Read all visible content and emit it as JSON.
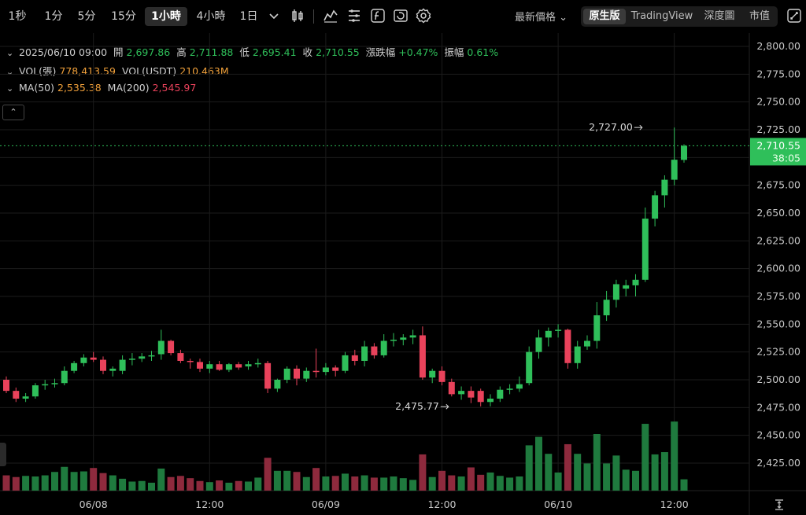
{
  "toolbar": {
    "timeframes": [
      "1秒",
      "1分",
      "5分",
      "15分",
      "1小時",
      "4小時",
      "1日"
    ],
    "active_timeframe": "1小時",
    "price_type": "最新價格",
    "modes": [
      "原生版",
      "TradingView",
      "深度圖",
      "市值"
    ],
    "active_mode": "原生版",
    "icons": [
      "chevron-down-icon",
      "candles-icon",
      "indicator-icon",
      "drawing-icon",
      "fx-icon",
      "replay-icon",
      "settings-icon",
      "fullscreen-icon"
    ]
  },
  "legend": {
    "datetime": "2025/06/10 09:00",
    "open_label": "開",
    "open": "2,697.86",
    "high_label": "高",
    "high": "2,711.88",
    "low_label": "低",
    "low": "2,695.41",
    "close_label": "收",
    "close": "2,710.55",
    "change_label": "漲跌幅",
    "change": "+0.47%",
    "amplitude_label": "振幅",
    "amplitude": "0.61%",
    "vol_label": "VOL(張)",
    "vol": "778,413.59",
    "volusdt_label": "VOL(USDT)",
    "volusdt": "210.463M",
    "ma50_label": "MA(50)",
    "ma50": "2,535.38",
    "ma200_label": "MA(200)",
    "ma200": "2,545.97"
  },
  "colors": {
    "up": "#2fbf5a",
    "down": "#e9425b",
    "up_vol": "#1f7a3e",
    "down_vol": "#8e2a3d",
    "grid": "#1b1b1b",
    "current": "#2fbf5a"
  },
  "chart_data": {
    "type": "candlestick",
    "title": "",
    "xlabel": "",
    "ylabel": "",
    "ylim": [
      2400,
      2810
    ],
    "y_ticks": [
      2425,
      2450,
      2475,
      2500,
      2525,
      2550,
      2575,
      2600,
      2625,
      2650,
      2675,
      2700,
      2725,
      2750,
      2775,
      2800
    ],
    "y_tick_labels": [
      "2,425.00",
      "2,450.00",
      "2,475.00",
      "2,500.00",
      "2,525.00",
      "2,550.00",
      "2,575.00",
      "2,600.00",
      "2,625.00",
      "2,650.00",
      "2,675.00",
      "2,700.00",
      "2,725.00",
      "2,750.00",
      "2,775.00",
      "2,800.00"
    ],
    "x_tick_labels": [
      "06/08",
      "12:00",
      "06/09",
      "12:00",
      "06/10",
      "12:00"
    ],
    "x_tick_candle_index": [
      9,
      21,
      33,
      45,
      57,
      69
    ],
    "current_price": "2,710.55",
    "current_price_value": 2710.55,
    "countdown": "38:05",
    "high_marker": {
      "label": "2,727.00",
      "value": 2727.0,
      "index": 66
    },
    "low_marker": {
      "label": "2,475.77",
      "value": 2475.77,
      "index": 46
    },
    "candles": [
      {
        "o": 2500,
        "h": 2503,
        "l": 2488,
        "c": 2490,
        "v": 0.27
      },
      {
        "o": 2490,
        "h": 2493,
        "l": 2480,
        "c": 2483,
        "v": 0.24
      },
      {
        "o": 2483,
        "h": 2488,
        "l": 2480,
        "c": 2485,
        "v": 0.26
      },
      {
        "o": 2485,
        "h": 2497,
        "l": 2483,
        "c": 2495,
        "v": 0.25
      },
      {
        "o": 2495,
        "h": 2500,
        "l": 2491,
        "c": 2496,
        "v": 0.27
      },
      {
        "o": 2496,
        "h": 2501,
        "l": 2493,
        "c": 2497,
        "v": 0.33
      },
      {
        "o": 2497,
        "h": 2512,
        "l": 2495,
        "c": 2508,
        "v": 0.42
      },
      {
        "o": 2508,
        "h": 2517,
        "l": 2506,
        "c": 2515,
        "v": 0.33
      },
      {
        "o": 2515,
        "h": 2523,
        "l": 2512,
        "c": 2520,
        "v": 0.34
      },
      {
        "o": 2520,
        "h": 2525,
        "l": 2516,
        "c": 2518,
        "v": 0.4
      },
      {
        "o": 2518,
        "h": 2521,
        "l": 2505,
        "c": 2508,
        "v": 0.31
      },
      {
        "o": 2508,
        "h": 2512,
        "l": 2503,
        "c": 2510,
        "v": 0.27
      },
      {
        "o": 2508,
        "h": 2522,
        "l": 2505,
        "c": 2518,
        "v": 0.21
      },
      {
        "o": 2518,
        "h": 2524,
        "l": 2513,
        "c": 2519,
        "v": 0.16
      },
      {
        "o": 2519,
        "h": 2524,
        "l": 2516,
        "c": 2521,
        "v": 0.17
      },
      {
        "o": 2521,
        "h": 2526,
        "l": 2517,
        "c": 2522,
        "v": 0.14
      },
      {
        "o": 2523,
        "h": 2545,
        "l": 2518,
        "c": 2535,
        "v": 0.39
      },
      {
        "o": 2535,
        "h": 2536,
        "l": 2522,
        "c": 2524,
        "v": 0.24
      },
      {
        "o": 2524,
        "h": 2527,
        "l": 2515,
        "c": 2517,
        "v": 0.26
      },
      {
        "o": 2517,
        "h": 2519,
        "l": 2510,
        "c": 2516,
        "v": 0.22
      },
      {
        "o": 2516,
        "h": 2519,
        "l": 2507,
        "c": 2510,
        "v": 0.17
      },
      {
        "o": 2510,
        "h": 2517,
        "l": 2506,
        "c": 2514,
        "v": 0.15
      },
      {
        "o": 2514,
        "h": 2517,
        "l": 2508,
        "c": 2509,
        "v": 0.18
      },
      {
        "o": 2509,
        "h": 2515,
        "l": 2507,
        "c": 2514,
        "v": 0.14
      },
      {
        "o": 2514,
        "h": 2516,
        "l": 2509,
        "c": 2511,
        "v": 0.17
      },
      {
        "o": 2512,
        "h": 2517,
        "l": 2509,
        "c": 2514,
        "v": 0.16
      },
      {
        "o": 2514,
        "h": 2519,
        "l": 2511,
        "c": 2515,
        "v": 0.23
      },
      {
        "o": 2515,
        "h": 2517,
        "l": 2488,
        "c": 2492,
        "v": 0.58
      },
      {
        "o": 2492,
        "h": 2501,
        "l": 2489,
        "c": 2500,
        "v": 0.35
      },
      {
        "o": 2500,
        "h": 2512,
        "l": 2497,
        "c": 2510,
        "v": 0.35
      },
      {
        "o": 2510,
        "h": 2513,
        "l": 2495,
        "c": 2501,
        "v": 0.33
      },
      {
        "o": 2501,
        "h": 2511,
        "l": 2498,
        "c": 2508,
        "v": 0.24
      },
      {
        "o": 2508,
        "h": 2528,
        "l": 2502,
        "c": 2507,
        "v": 0.4
      },
      {
        "o": 2507,
        "h": 2515,
        "l": 2504,
        "c": 2511,
        "v": 0.25
      },
      {
        "o": 2511,
        "h": 2513,
        "l": 2503,
        "c": 2508,
        "v": 0.26
      },
      {
        "o": 2508,
        "h": 2525,
        "l": 2506,
        "c": 2522,
        "v": 0.3
      },
      {
        "o": 2522,
        "h": 2527,
        "l": 2513,
        "c": 2517,
        "v": 0.25
      },
      {
        "o": 2517,
        "h": 2535,
        "l": 2512,
        "c": 2530,
        "v": 0.27
      },
      {
        "o": 2530,
        "h": 2533,
        "l": 2519,
        "c": 2522,
        "v": 0.23
      },
      {
        "o": 2522,
        "h": 2541,
        "l": 2520,
        "c": 2535,
        "v": 0.23
      },
      {
        "o": 2535,
        "h": 2542,
        "l": 2530,
        "c": 2536,
        "v": 0.25
      },
      {
        "o": 2536,
        "h": 2541,
        "l": 2531,
        "c": 2538,
        "v": 0.22
      },
      {
        "o": 2538,
        "h": 2545,
        "l": 2532,
        "c": 2540,
        "v": 0.19
      },
      {
        "o": 2540,
        "h": 2548,
        "l": 2500,
        "c": 2502,
        "v": 0.64
      },
      {
        "o": 2502,
        "h": 2510,
        "l": 2497,
        "c": 2508,
        "v": 0.24
      },
      {
        "o": 2508,
        "h": 2512,
        "l": 2495,
        "c": 2498,
        "v": 0.35
      },
      {
        "o": 2498,
        "h": 2501,
        "l": 2485,
        "c": 2487,
        "v": 0.27
      },
      {
        "o": 2487,
        "h": 2494,
        "l": 2482,
        "c": 2490,
        "v": 0.25
      },
      {
        "o": 2490,
        "h": 2494,
        "l": 2479,
        "c": 2484,
        "v": 0.41
      },
      {
        "o": 2490,
        "h": 2492,
        "l": 2476,
        "c": 2480,
        "v": 0.28
      },
      {
        "o": 2480,
        "h": 2487,
        "l": 2476,
        "c": 2483,
        "v": 0.32
      },
      {
        "o": 2483,
        "h": 2494,
        "l": 2480,
        "c": 2491,
        "v": 0.26
      },
      {
        "o": 2491,
        "h": 2496,
        "l": 2487,
        "c": 2492,
        "v": 0.23
      },
      {
        "o": 2492,
        "h": 2503,
        "l": 2489,
        "c": 2496,
        "v": 0.25
      },
      {
        "o": 2497,
        "h": 2530,
        "l": 2495,
        "c": 2525,
        "v": 0.8
      },
      {
        "o": 2525,
        "h": 2545,
        "l": 2519,
        "c": 2538,
        "v": 0.95
      },
      {
        "o": 2538,
        "h": 2547,
        "l": 2530,
        "c": 2544,
        "v": 0.65
      },
      {
        "o": 2544,
        "h": 2550,
        "l": 2538,
        "c": 2545,
        "v": 0.32
      },
      {
        "o": 2545,
        "h": 2546,
        "l": 2510,
        "c": 2515,
        "v": 0.82
      },
      {
        "o": 2515,
        "h": 2535,
        "l": 2510,
        "c": 2530,
        "v": 0.65
      },
      {
        "o": 2530,
        "h": 2540,
        "l": 2527,
        "c": 2535,
        "v": 0.48
      },
      {
        "o": 2535,
        "h": 2570,
        "l": 2528,
        "c": 2558,
        "v": 1.0
      },
      {
        "o": 2558,
        "h": 2580,
        "l": 2553,
        "c": 2572,
        "v": 0.48
      },
      {
        "o": 2572,
        "h": 2590,
        "l": 2565,
        "c": 2586,
        "v": 0.62
      },
      {
        "o": 2582,
        "h": 2590,
        "l": 2575,
        "c": 2585,
        "v": 0.37
      },
      {
        "o": 2585,
        "h": 2595,
        "l": 2575,
        "c": 2590,
        "v": 0.35
      },
      {
        "o": 2590,
        "h": 2655,
        "l": 2588,
        "c": 2645,
        "v": 1.18
      },
      {
        "o": 2645,
        "h": 2670,
        "l": 2638,
        "c": 2666,
        "v": 0.64
      },
      {
        "o": 2666,
        "h": 2684,
        "l": 2655,
        "c": 2680,
        "v": 0.68
      },
      {
        "o": 2680,
        "h": 2727,
        "l": 2675,
        "c": 2698,
        "v": 1.22
      },
      {
        "o": 2697.86,
        "h": 2711.88,
        "l": 2695.41,
        "c": 2710.55,
        "v": 0.2
      }
    ]
  }
}
